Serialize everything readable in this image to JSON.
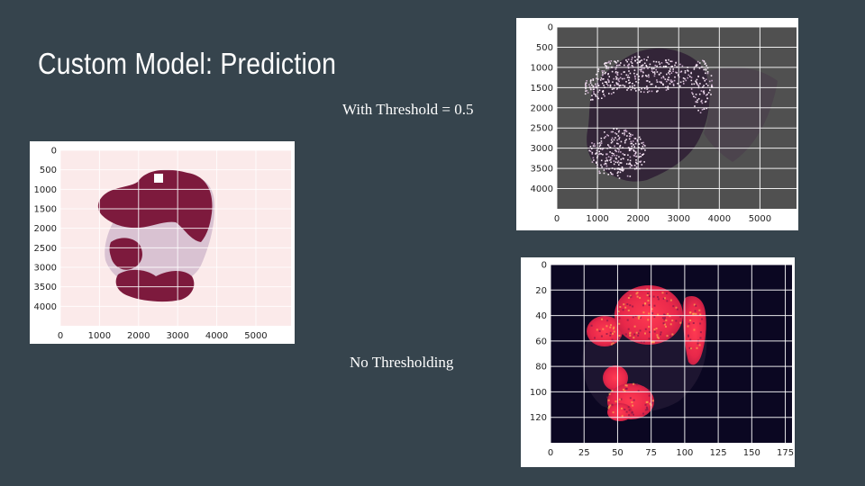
{
  "slide": {
    "title": "Custom Model: Prediction",
    "caption_threshold": "With Threshold = 0.5",
    "caption_raw": "No Thresholding"
  },
  "colors": {
    "background": "#36444d",
    "overlay_dark": "#7d1a3d",
    "overlay_light_bg": "#fbeaea",
    "threshold_bg": "#505050",
    "raw_bg": "#0b0722"
  },
  "chart_data": [
    {
      "type": "heatmap",
      "name": "overlay",
      "x_ticks": [
        "0",
        "1000",
        "2000",
        "3000",
        "4000",
        "5000"
      ],
      "y_ticks": [
        "0",
        "500",
        "1000",
        "1500",
        "2000",
        "2500",
        "3000",
        "3500",
        "4000"
      ],
      "xlim": [
        0,
        5900
      ],
      "ylim": [
        4500,
        0
      ],
      "grid": true
    },
    {
      "type": "heatmap",
      "name": "threshold",
      "x_ticks": [
        "0",
        "1000",
        "2000",
        "3000",
        "4000",
        "5000"
      ],
      "y_ticks": [
        "0",
        "500",
        "1000",
        "1500",
        "2000",
        "2500",
        "3000",
        "3500",
        "4000"
      ],
      "xlim": [
        0,
        5900
      ],
      "ylim": [
        4500,
        0
      ],
      "grid": true
    },
    {
      "type": "heatmap",
      "name": "raw",
      "x_ticks": [
        "0",
        "25",
        "50",
        "75",
        "100",
        "125",
        "150",
        "175"
      ],
      "y_ticks": [
        "0",
        "20",
        "40",
        "60",
        "80",
        "100",
        "120"
      ],
      "xlim": [
        0,
        180
      ],
      "ylim": [
        140,
        0
      ],
      "grid": true
    }
  ]
}
